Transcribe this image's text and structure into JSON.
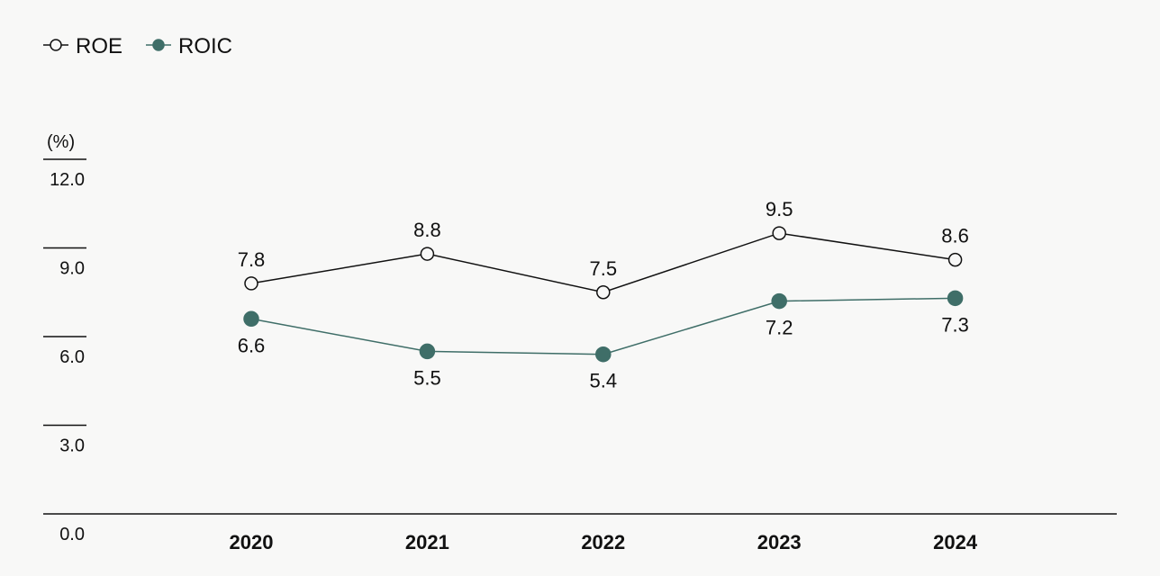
{
  "colors": {
    "background": "#f8f8f7",
    "roe": "#111111",
    "roic": "#3f6e68",
    "axis": "#111111"
  },
  "chart_data": {
    "type": "line",
    "title": "",
    "xlabel": "",
    "ylabel": "(%)",
    "ylim": [
      0,
      12
    ],
    "yticks": [
      "12.0",
      "9.0",
      "6.0",
      "3.0",
      "0.0"
    ],
    "ytick_values": [
      12,
      9,
      6,
      3,
      0
    ],
    "x": [
      "2020",
      "2021",
      "2022",
      "2023",
      "2024"
    ],
    "legend_placement": "top-left",
    "grid": false,
    "series": [
      {
        "name": "ROE",
        "values": [
          7.8,
          8.8,
          7.5,
          9.5,
          8.6
        ],
        "labels": [
          "7.8",
          "8.8",
          "7.5",
          "9.5",
          "8.6"
        ],
        "marker": "open-circle",
        "label_position": "above"
      },
      {
        "name": "ROIC",
        "values": [
          6.6,
          5.5,
          5.4,
          7.2,
          7.3
        ],
        "labels": [
          "6.6",
          "5.5",
          "5.4",
          "7.2",
          "7.3"
        ],
        "marker": "filled-circle",
        "label_position": "below"
      }
    ]
  }
}
